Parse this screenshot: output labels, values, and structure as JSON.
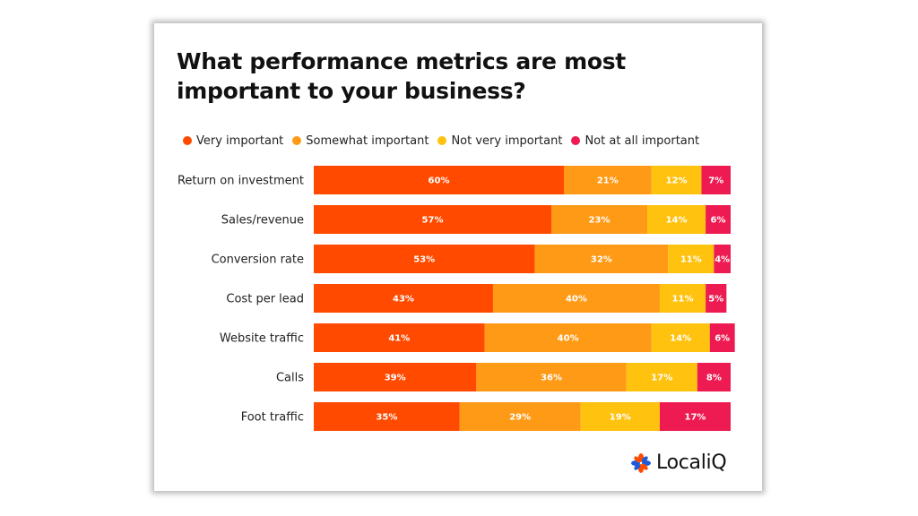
{
  "chart_data": {
    "type": "bar",
    "orientation": "horizontal",
    "stacked": true,
    "title": "What performance metrics are most important to your business?",
    "categories": [
      "Return on investment",
      "Sales/revenue",
      "Conversion rate",
      "Cost per lead",
      "Website traffic",
      "Calls",
      "Foot traffic"
    ],
    "series": [
      {
        "name": "Very important",
        "color": "#FF4A00",
        "values": [
          60,
          57,
          53,
          43,
          41,
          39,
          35
        ]
      },
      {
        "name": "Somewhat important",
        "color": "#FF9A16",
        "values": [
          21,
          23,
          32,
          40,
          40,
          36,
          29
        ]
      },
      {
        "name": "Not very important",
        "color": "#FFC20E",
        "values": [
          12,
          14,
          11,
          11,
          14,
          17,
          19
        ]
      },
      {
        "name": "Not at all important",
        "color": "#EE1B52",
        "values": [
          7,
          6,
          4,
          5,
          6,
          8,
          17
        ]
      }
    ],
    "value_suffix": "%",
    "xlim": [
      0,
      100
    ],
    "legend": "top-left",
    "grid": false
  },
  "brand": {
    "name": "LocaliQ",
    "logo_icon": "asterisk-flower-icon",
    "colors": [
      "#FF4A00",
      "#1E5BD8",
      "#FF4A00",
      "#1E5BD8"
    ]
  }
}
